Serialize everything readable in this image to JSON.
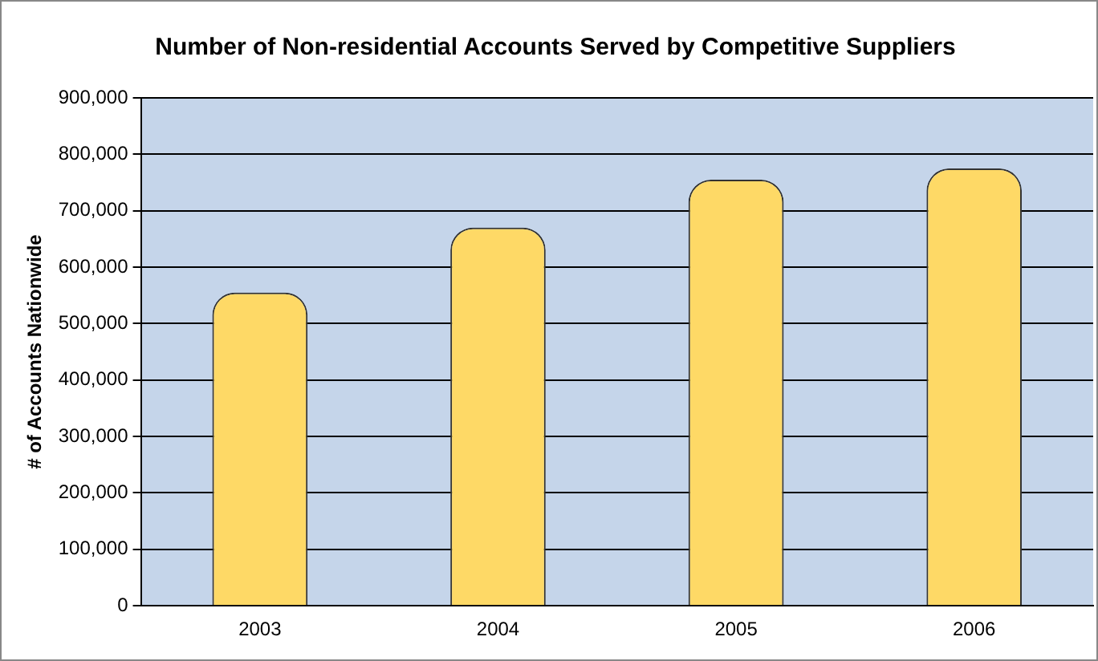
{
  "chart_data": {
    "type": "bar",
    "title": "Number of Non-residential Accounts Served by Competitive Suppliers",
    "ylabel": "# of Accounts Nationwide",
    "categories": [
      "2003",
      "2004",
      "2005",
      "2006"
    ],
    "values": [
      555000,
      670000,
      755000,
      775000
    ],
    "color": "#fed966",
    "ylim": [
      0,
      900000
    ],
    "yticks": [
      0,
      {
        "value": 100000,
        "label": "100,000"
      },
      {
        "value": 200000,
        "label": "200,000"
      },
      {
        "value": 300000,
        "label": "300,000"
      },
      {
        "value": 400000,
        "label": "400,000"
      },
      {
        "value": 500000,
        "label": "500,000"
      },
      {
        "value": 600000,
        "label": "600,000"
      },
      {
        "value": 700000,
        "label": "700,000"
      },
      {
        "value": 800000,
        "label": "800,000"
      },
      {
        "value": 900000,
        "label": "900,000"
      }
    ],
    "grid": "y",
    "legend": false
  }
}
